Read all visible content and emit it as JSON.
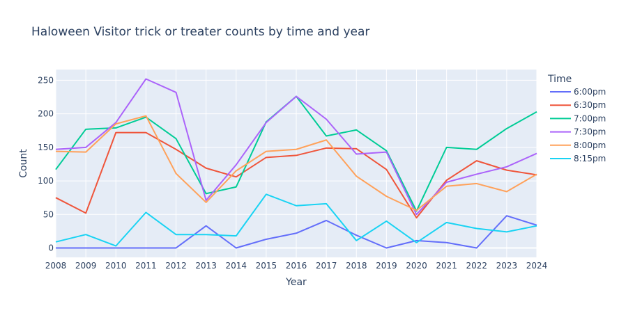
{
  "chart_data": {
    "type": "line",
    "title": "Haloween Visitor trick or treater counts by time and year",
    "xlabel": "Year",
    "ylabel": "Count",
    "x": [
      2008,
      2009,
      2010,
      2011,
      2012,
      2013,
      2014,
      2015,
      2016,
      2017,
      2018,
      2019,
      2020,
      2021,
      2022,
      2023,
      2024
    ],
    "x_tick_labels": [
      "2008",
      "2009",
      "2010",
      "2011",
      "2012",
      "2013",
      "2014",
      "2015",
      "2016",
      "2017",
      "2018",
      "2019",
      "2020",
      "2021",
      "2022",
      "2023",
      "2024"
    ],
    "y_ticks": [
      0,
      50,
      100,
      150,
      200,
      250
    ],
    "y_tick_labels": [
      "0",
      "50",
      "100",
      "150",
      "200",
      "250"
    ],
    "xlim": [
      2008,
      2024
    ],
    "ylim": [
      -14,
      266
    ],
    "grid": true,
    "legend": {
      "title": "Time",
      "placement": "right"
    },
    "series": [
      {
        "name": "6:00pm",
        "color": "#636efa",
        "values": [
          0,
          0,
          0,
          0,
          0,
          33,
          0,
          13,
          22,
          41,
          19,
          0,
          11,
          8,
          0,
          48,
          34
        ]
      },
      {
        "name": "6:30pm",
        "color": "#EF553B",
        "values": [
          75,
          52,
          172,
          172,
          147,
          119,
          106,
          135,
          138,
          149,
          148,
          117,
          45,
          101,
          130,
          116,
          109
        ]
      },
      {
        "name": "7:00pm",
        "color": "#00cc96",
        "values": [
          117,
          177,
          179,
          195,
          163,
          81,
          91,
          188,
          226,
          167,
          176,
          145,
          55,
          150,
          147,
          178,
          203
        ]
      },
      {
        "name": "7:30pm",
        "color": "#ab63fa",
        "values": [
          147,
          150,
          187,
          252,
          232,
          71,
          124,
          187,
          226,
          192,
          140,
          143,
          50,
          98,
          110,
          121,
          141
        ]
      },
      {
        "name": "8:00pm",
        "color": "#FFA15A",
        "values": [
          144,
          143,
          185,
          197,
          111,
          68,
          115,
          144,
          147,
          161,
          107,
          77,
          56,
          92,
          96,
          84,
          110
        ]
      },
      {
        "name": "8:15pm",
        "color": "#19d3f3",
        "values": [
          9,
          20,
          3,
          53,
          20,
          20,
          18,
          80,
          63,
          66,
          11,
          40,
          8,
          38,
          29,
          24,
          33
        ]
      }
    ]
  },
  "colors": {
    "plot_bg": "#e5ecf6",
    "grid": "#ffffff",
    "text": "#2a3f5f"
  }
}
